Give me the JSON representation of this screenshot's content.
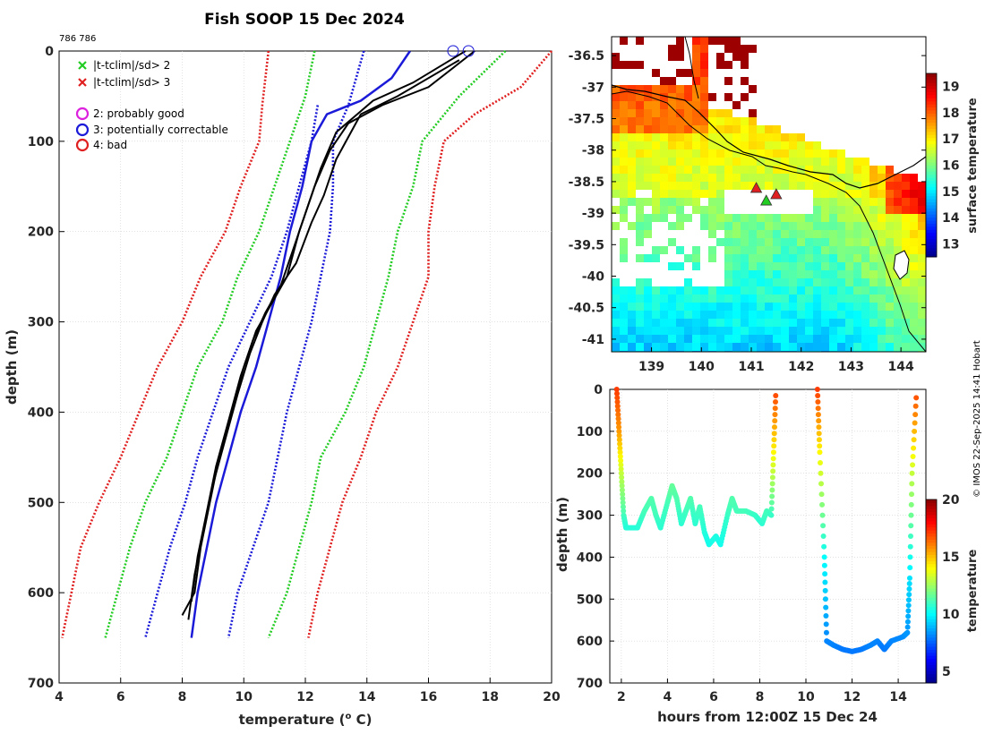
{
  "title": "Fish SOOP 15 Dec 2024",
  "id_label": "786 786",
  "credit": "© IMOS 22-Sep-2025 14:41 Hobart",
  "colors": {
    "red": "#e02020",
    "green": "#22cc22",
    "blue": "#1a1ad8",
    "magenta": "#dd22dd",
    "black": "#000000"
  },
  "legend": {
    "items": [
      {
        "symbol": "x",
        "color": "#22cc22",
        "label": "|t-tclim|/sd> 2"
      },
      {
        "symbol": "x",
        "color": "#e02020",
        "label": "|t-tclim|/sd> 3"
      },
      {
        "symbol": "o",
        "color": "#dd22dd",
        "label": "2: probably good"
      },
      {
        "symbol": "o",
        "color": "#1a1ad8",
        "label": "3: potentially correctable"
      },
      {
        "symbol": "o",
        "color": "#e02020",
        "label": "4: bad"
      }
    ]
  },
  "chart_data": [
    {
      "type": "line",
      "name": "profile",
      "xlabel": "temperature (°C)",
      "xlabel_main": "temperature (",
      "xlabel_sup": "o",
      "xlabel_tail": " C)",
      "ylabel": "depth (m)",
      "xlim": [
        4,
        20
      ],
      "ylim": [
        700,
        0
      ],
      "xticks": [
        4,
        6,
        8,
        10,
        12,
        14,
        16,
        18,
        20
      ],
      "yticks": [
        0,
        100,
        200,
        300,
        400,
        500,
        600,
        700
      ],
      "grid": true,
      "envelopes": [
        {
          "name": "clim-3sd-low",
          "color": "#e02020",
          "points": [
            [
              10.8,
              0
            ],
            [
              10.6,
              60
            ],
            [
              10.5,
              100
            ],
            [
              9.9,
              150
            ],
            [
              9.4,
              200
            ],
            [
              8.6,
              250
            ],
            [
              8.0,
              300
            ],
            [
              7.2,
              350
            ],
            [
              6.6,
              400
            ],
            [
              6.0,
              450
            ],
            [
              5.3,
              500
            ],
            [
              4.7,
              550
            ],
            [
              4.4,
              600
            ],
            [
              4.1,
              650
            ]
          ]
        },
        {
          "name": "clim-2sd-low",
          "color": "#22cc22",
          "points": [
            [
              12.3,
              0
            ],
            [
              12.0,
              50
            ],
            [
              11.5,
              100
            ],
            [
              11.0,
              150
            ],
            [
              10.5,
              200
            ],
            [
              9.8,
              250
            ],
            [
              9.3,
              300
            ],
            [
              8.5,
              350
            ],
            [
              8.0,
              400
            ],
            [
              7.5,
              450
            ],
            [
              6.8,
              500
            ],
            [
              6.3,
              550
            ],
            [
              5.9,
              600
            ],
            [
              5.5,
              650
            ]
          ]
        },
        {
          "name": "clim-sd-low",
          "color": "#1a1ad8",
          "points": [
            [
              12.4,
              60
            ],
            [
              12.2,
              100
            ],
            [
              11.8,
              150
            ],
            [
              11.4,
              200
            ],
            [
              10.9,
              250
            ],
            [
              10.2,
              300
            ],
            [
              9.5,
              350
            ],
            [
              9.0,
              400
            ],
            [
              8.5,
              450
            ],
            [
              8.1,
              500
            ],
            [
              7.6,
              550
            ],
            [
              7.2,
              600
            ],
            [
              6.8,
              650
            ]
          ]
        },
        {
          "name": "clim-sd-high",
          "color": "#1a1ad8",
          "points": [
            [
              13.9,
              0
            ],
            [
              13.4,
              60
            ],
            [
              12.9,
              100
            ],
            [
              12.9,
              150
            ],
            [
              12.8,
              200
            ],
            [
              12.5,
              250
            ],
            [
              12.2,
              300
            ],
            [
              11.8,
              350
            ],
            [
              11.4,
              400
            ],
            [
              11.1,
              450
            ],
            [
              10.8,
              500
            ],
            [
              10.3,
              550
            ],
            [
              9.8,
              600
            ],
            [
              9.5,
              650
            ]
          ]
        },
        {
          "name": "clim-2sd-high",
          "color": "#22cc22",
          "points": [
            [
              18.5,
              0
            ],
            [
              17.0,
              50
            ],
            [
              15.8,
              100
            ],
            [
              15.5,
              150
            ],
            [
              15.0,
              200
            ],
            [
              14.7,
              250
            ],
            [
              14.3,
              300
            ],
            [
              13.9,
              350
            ],
            [
              13.3,
              400
            ],
            [
              12.5,
              450
            ],
            [
              12.2,
              500
            ],
            [
              11.8,
              550
            ],
            [
              11.4,
              600
            ],
            [
              10.8,
              650
            ]
          ]
        },
        {
          "name": "clim-3sd-high",
          "color": "#e02020",
          "points": [
            [
              20.0,
              0
            ],
            [
              19.0,
              40
            ],
            [
              17.5,
              70
            ],
            [
              16.5,
              100
            ],
            [
              16.2,
              150
            ],
            [
              16.0,
              200
            ],
            [
              16.0,
              250
            ],
            [
              15.5,
              300
            ],
            [
              15.0,
              350
            ],
            [
              14.3,
              400
            ],
            [
              13.8,
              450
            ],
            [
              13.2,
              500
            ],
            [
              12.8,
              550
            ],
            [
              12.4,
              600
            ],
            [
              12.1,
              650
            ]
          ]
        }
      ],
      "climatology": {
        "color": "#1a1ad8",
        "points": [
          [
            15.4,
            0
          ],
          [
            14.8,
            30
          ],
          [
            13.8,
            55
          ],
          [
            12.7,
            70
          ],
          [
            12.2,
            100
          ],
          [
            11.9,
            150
          ],
          [
            11.5,
            200
          ],
          [
            11.2,
            250
          ],
          [
            10.8,
            300
          ],
          [
            10.4,
            350
          ],
          [
            9.9,
            400
          ],
          [
            9.5,
            450
          ],
          [
            9.1,
            500
          ],
          [
            8.8,
            550
          ],
          [
            8.5,
            600
          ],
          [
            8.3,
            650
          ]
        ]
      },
      "profiles": [
        {
          "color": "#000000",
          "points": [
            [
              17.5,
              0
            ],
            [
              16.0,
              40
            ],
            [
              14.5,
              60
            ],
            [
              13.4,
              80
            ],
            [
              12.8,
              110
            ],
            [
              12.3,
              150
            ],
            [
              11.8,
              200
            ],
            [
              11.4,
              250
            ],
            [
              10.9,
              280
            ],
            [
              10.4,
              310
            ],
            [
              10.0,
              350
            ],
            [
              9.6,
              400
            ],
            [
              9.2,
              450
            ],
            [
              8.9,
              500
            ],
            [
              8.6,
              550
            ],
            [
              8.4,
              600
            ],
            [
              8.0,
              625
            ]
          ]
        },
        {
          "color": "#000000",
          "points": [
            [
              17.2,
              0
            ],
            [
              15.5,
              35
            ],
            [
              14.2,
              55
            ],
            [
              13.0,
              90
            ],
            [
              12.5,
              130
            ],
            [
              12.1,
              170
            ],
            [
              11.6,
              220
            ],
            [
              11.2,
              260
            ],
            [
              10.7,
              290
            ],
            [
              10.3,
              320
            ],
            [
              9.9,
              360
            ],
            [
              9.5,
              410
            ],
            [
              9.1,
              460
            ],
            [
              8.8,
              510
            ],
            [
              8.5,
              560
            ],
            [
              8.3,
              610
            ]
          ]
        },
        {
          "color": "#000000",
          "points": [
            [
              17.0,
              10
            ],
            [
              15.0,
              50
            ],
            [
              13.8,
              70
            ],
            [
              13.0,
              120
            ],
            [
              12.6,
              160
            ],
            [
              12.2,
              190
            ],
            [
              11.7,
              235
            ],
            [
              11.0,
              270
            ],
            [
              10.6,
              300
            ],
            [
              10.2,
              335
            ],
            [
              9.8,
              380
            ],
            [
              9.4,
              430
            ],
            [
              9.0,
              480
            ],
            [
              8.7,
              530
            ],
            [
              8.4,
              580
            ],
            [
              8.2,
              630
            ]
          ]
        }
      ],
      "flags": [
        {
          "x": 16.8,
          "y": 0,
          "color": "#1a1ad8"
        },
        {
          "x": 17.3,
          "y": 0,
          "color": "#1a1ad8"
        }
      ]
    },
    {
      "type": "heatmap",
      "name": "sst-map",
      "colorbar_label": "surface temperature",
      "xlim": [
        138.2,
        144.5
      ],
      "ylim": [
        -41.2,
        -36.2
      ],
      "xticks": [
        139,
        140,
        141,
        142,
        143,
        144
      ],
      "yticks": [
        -36.5,
        -37,
        -37.5,
        -38,
        -38.5,
        -39,
        -39.5,
        -40,
        -40.5,
        -41
      ],
      "cbar_ticks": [
        13,
        14,
        15,
        16,
        17,
        18,
        19
      ],
      "cbar_range": [
        12.5,
        19.5
      ],
      "track_markers": [
        {
          "lon": 141.1,
          "lat": -38.6,
          "color": "#e02020"
        },
        {
          "lon": 141.3,
          "lat": -38.8,
          "color": "#22cc22"
        },
        {
          "lon": 141.5,
          "lat": -38.7,
          "color": "#e02020"
        }
      ]
    },
    {
      "type": "scatter",
      "name": "depth-time",
      "xlabel": "hours from 12:00Z 15 Dec 24",
      "ylabel": "depth (m)",
      "colorbar_label": "temperature",
      "xlim": [
        1.5,
        15.2
      ],
      "ylim": [
        700,
        0
      ],
      "xticks": [
        2,
        4,
        6,
        8,
        10,
        12,
        14
      ],
      "yticks": [
        0,
        100,
        200,
        300,
        400,
        500,
        600,
        700
      ],
      "cbar_ticks": [
        5,
        10,
        15,
        20
      ],
      "cbar_range": [
        4,
        20
      ],
      "segments": [
        [
          [
            1.8,
            0,
            17
          ],
          [
            1.9,
            100,
            15.5
          ],
          [
            2.0,
            200,
            13
          ],
          [
            2.1,
            300,
            11
          ],
          [
            2.2,
            330,
            10.5
          ],
          [
            2.7,
            330,
            10.5
          ],
          [
            3.0,
            290,
            11
          ],
          [
            3.3,
            260,
            11.2
          ],
          [
            3.5,
            300,
            11
          ],
          [
            3.7,
            330,
            10.6
          ],
          [
            4.0,
            270,
            11
          ],
          [
            4.2,
            230,
            11.5
          ],
          [
            4.4,
            260,
            11.2
          ],
          [
            4.6,
            320,
            10.6
          ],
          [
            4.8,
            290,
            10.9
          ],
          [
            5.0,
            260,
            11.2
          ],
          [
            5.2,
            320,
            10.6
          ],
          [
            5.4,
            280,
            11
          ],
          [
            5.6,
            340,
            10.5
          ],
          [
            5.8,
            370,
            10.2
          ],
          [
            6.1,
            350,
            10.4
          ],
          [
            6.3,
            370,
            10.2
          ],
          [
            6.6,
            300,
            10.8
          ],
          [
            6.8,
            260,
            11.2
          ],
          [
            7.0,
            290,
            11
          ],
          [
            7.4,
            290,
            11
          ],
          [
            7.8,
            300,
            10.8
          ],
          [
            8.1,
            320,
            10.6
          ],
          [
            8.3,
            290,
            11
          ],
          [
            8.5,
            300,
            10.8
          ],
          [
            8.6,
            150,
            14
          ],
          [
            8.7,
            0,
            17
          ]
        ],
        [
          [
            10.5,
            0,
            17
          ],
          [
            10.6,
            150,
            14
          ],
          [
            10.8,
            400,
            10
          ],
          [
            10.9,
            600,
            8
          ],
          [
            11.2,
            610,
            8
          ],
          [
            11.6,
            620,
            7.8
          ],
          [
            12.0,
            625,
            7.8
          ],
          [
            12.4,
            620,
            7.8
          ],
          [
            12.8,
            610,
            8
          ],
          [
            13.1,
            600,
            8
          ],
          [
            13.4,
            620,
            7.8
          ],
          [
            13.7,
            600,
            8
          ],
          [
            14.2,
            590,
            8.1
          ],
          [
            14.4,
            580,
            8.3
          ],
          [
            14.5,
            450,
            9.5
          ],
          [
            14.6,
            200,
            13
          ],
          [
            14.8,
            0,
            17
          ]
        ]
      ]
    }
  ]
}
